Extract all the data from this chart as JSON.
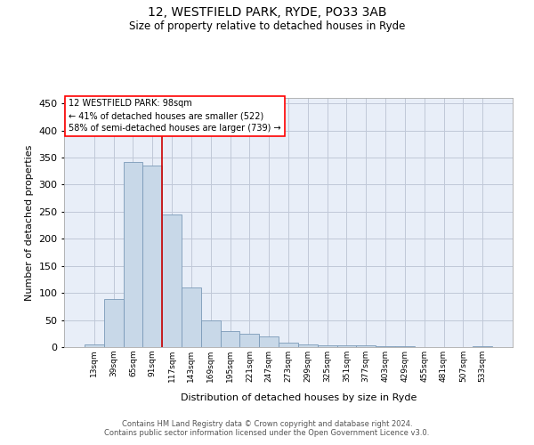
{
  "title1": "12, WESTFIELD PARK, RYDE, PO33 3AB",
  "title2": "Size of property relative to detached houses in Ryde",
  "xlabel": "Distribution of detached houses by size in Ryde",
  "ylabel": "Number of detached properties",
  "footer1": "Contains HM Land Registry data © Crown copyright and database right 2024.",
  "footer2": "Contains public sector information licensed under the Open Government Licence v3.0.",
  "annotation_line1": "12 WESTFIELD PARK: 98sqm",
  "annotation_line2": "← 41% of detached houses are smaller (522)",
  "annotation_line3": "58% of semi-detached houses are larger (739) →",
  "bar_color": "#c8d8e8",
  "bar_edge_color": "#7a9ab8",
  "vline_color": "#cc0000",
  "categories": [
    "13sqm",
    "39sqm",
    "65sqm",
    "91sqm",
    "117sqm",
    "143sqm",
    "169sqm",
    "195sqm",
    "221sqm",
    "247sqm",
    "273sqm",
    "299sqm",
    "325sqm",
    "351sqm",
    "377sqm",
    "403sqm",
    "429sqm",
    "455sqm",
    "481sqm",
    "507sqm",
    "533sqm"
  ],
  "values": [
    5,
    88,
    342,
    335,
    245,
    110,
    50,
    30,
    24,
    19,
    9,
    5,
    4,
    3,
    3,
    1,
    1,
    0,
    0,
    0,
    1
  ],
  "ylim": [
    0,
    460
  ],
  "yticks": [
    0,
    50,
    100,
    150,
    200,
    250,
    300,
    350,
    400,
    450
  ],
  "grid_color": "#c0c8d8",
  "background_color": "#e8eef8",
  "title1_fontsize": 10,
  "title2_fontsize": 8.5,
  "ylabel_fontsize": 8,
  "xlabel_fontsize": 8,
  "ytick_fontsize": 8,
  "xtick_fontsize": 6.5,
  "annotation_fontsize": 7,
  "footer_fontsize": 6
}
